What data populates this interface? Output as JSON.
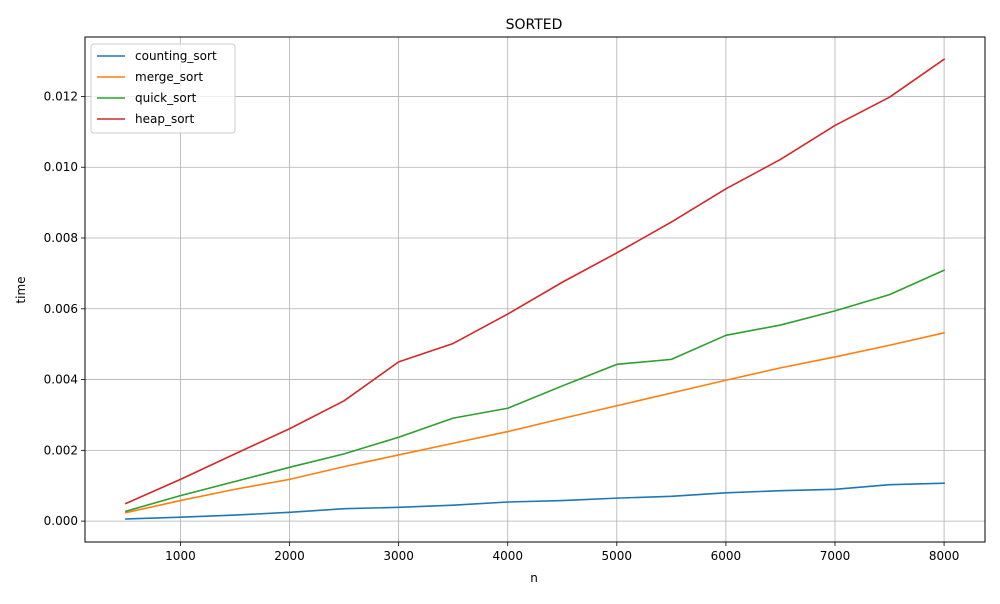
{
  "chart_data": {
    "type": "line",
    "title": "SORTED",
    "xlabel": "n",
    "ylabel": "time",
    "xlim": [
      125,
      8375
    ],
    "ylim": [
      -0.00059,
      0.01368
    ],
    "xticks": [
      1000,
      2000,
      3000,
      4000,
      5000,
      6000,
      7000,
      8000
    ],
    "xtick_labels": [
      "1000",
      "2000",
      "3000",
      "4000",
      "5000",
      "6000",
      "7000",
      "8000"
    ],
    "yticks": [
      0.0,
      0.002,
      0.004,
      0.006,
      0.008,
      0.01,
      0.012
    ],
    "ytick_labels": [
      "0.000",
      "0.002",
      "0.004",
      "0.006",
      "0.008",
      "0.010",
      "0.012"
    ],
    "grid": true,
    "legend_position": "top-left",
    "x": [
      500,
      1000,
      1500,
      2000,
      2500,
      3000,
      3500,
      4000,
      4500,
      5000,
      5500,
      6000,
      6500,
      7000,
      7500,
      8000
    ],
    "series": [
      {
        "name": "counting_sort",
        "color": "#1f77b4",
        "values": [
          6e-05,
          0.00011,
          0.00017,
          0.00025,
          0.00035,
          0.00039,
          0.00045,
          0.00054,
          0.00058,
          0.00065,
          0.0007,
          0.0008,
          0.00086,
          0.0009,
          0.00103,
          0.00107
        ]
      },
      {
        "name": "merge_sort",
        "color": "#ff7f0e",
        "values": [
          0.00024,
          0.00058,
          0.0009,
          0.00118,
          0.00154,
          0.00187,
          0.0022,
          0.00253,
          0.0029,
          0.00326,
          0.00362,
          0.00398,
          0.00433,
          0.00464,
          0.00497,
          0.00532
        ]
      },
      {
        "name": "quick_sort",
        "color": "#2ca02c",
        "values": [
          0.00028,
          0.00072,
          0.00112,
          0.00152,
          0.0019,
          0.00237,
          0.00291,
          0.00319,
          0.00382,
          0.00443,
          0.00457,
          0.00525,
          0.00554,
          0.00594,
          0.0064,
          0.00709
        ]
      },
      {
        "name": "heap_sort",
        "color": "#d62728",
        "values": [
          0.0005,
          0.00118,
          0.0019,
          0.00261,
          0.0034,
          0.0045,
          0.00502,
          0.00585,
          0.00675,
          0.00758,
          0.00845,
          0.00939,
          0.01022,
          0.01118,
          0.01198,
          0.01305
        ]
      }
    ]
  }
}
